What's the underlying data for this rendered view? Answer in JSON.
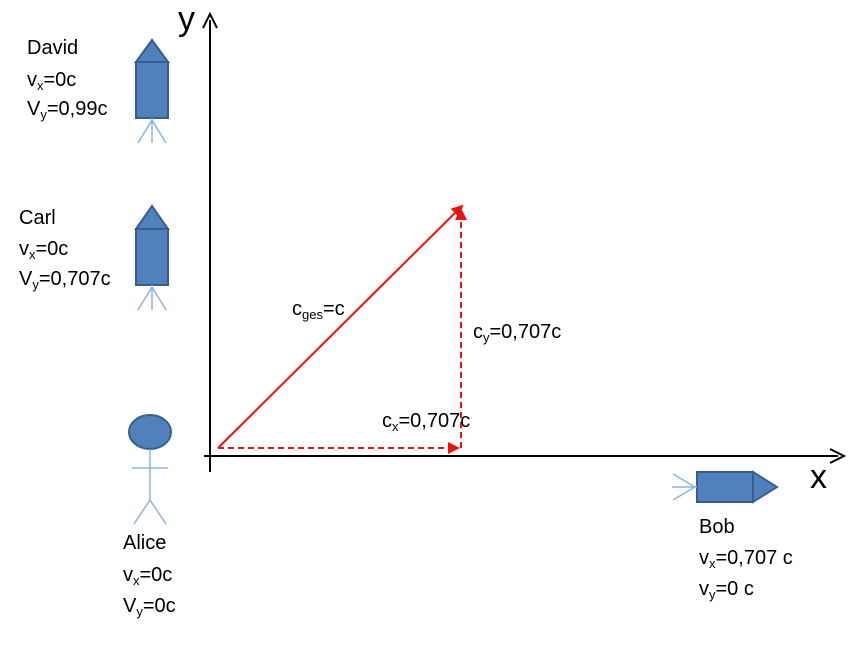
{
  "colors": {
    "axis": "#000000",
    "vector": "#ee1111",
    "ship_fill": "#4f81bd",
    "ship_stroke": "#385d8a",
    "antenna": "#8eb4e3"
  },
  "axes": {
    "x_label": "x",
    "y_label": "y"
  },
  "vectors": {
    "total": {
      "main": "c",
      "sub": "ges",
      "rest": "=c"
    },
    "cx": {
      "main": "c",
      "sub": "x",
      "rest": "=0,707c"
    },
    "cy": {
      "main": "c",
      "sub": "y",
      "rest": "=0,707c"
    }
  },
  "observers": {
    "david": {
      "name": "David",
      "icon": "rocket-up-icon",
      "l1": {
        "main": "v",
        "sub": "x",
        "rest": "=0c"
      },
      "l2": {
        "main": "V",
        "sub": "y",
        "rest": "=0,99c"
      }
    },
    "carl": {
      "name": "Carl",
      "icon": "rocket-up-icon",
      "l1": {
        "main": "v",
        "sub": "x",
        "rest": "=0c"
      },
      "l2": {
        "main": "V",
        "sub": "y",
        "rest": "=0,707c"
      }
    },
    "alice": {
      "name": "Alice",
      "icon": "stick-figure-icon",
      "l1": {
        "main": "v",
        "sub": "x",
        "rest": "=0c"
      },
      "l2": {
        "main": "V",
        "sub": "y",
        "rest": "=0c"
      }
    },
    "bob": {
      "name": "Bob",
      "icon": "rocket-right-icon",
      "l1": {
        "main": "v",
        "sub": "x",
        "rest": "=0,707 c"
      },
      "l2": {
        "main": "v",
        "sub": "y",
        "rest": "=0 c"
      }
    }
  }
}
